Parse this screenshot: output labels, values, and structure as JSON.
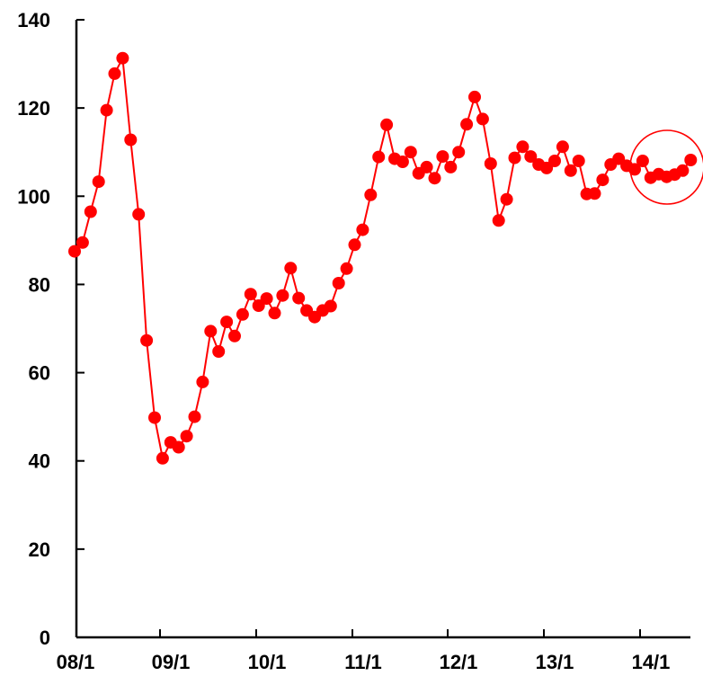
{
  "chart_data": {
    "type": "line",
    "title": "",
    "xlabel": "",
    "ylabel": "",
    "x_ticks": [
      "08/1",
      "09/1",
      "10/1",
      "11/1",
      "12/1",
      "13/1",
      "14/1"
    ],
    "y_ticks": [
      "0",
      "20",
      "40",
      "60",
      "80",
      "100",
      "120",
      "140"
    ],
    "ylim": [
      0,
      140
    ],
    "grid": false,
    "legend": "none",
    "series": [
      {
        "color": "#ff0000",
        "marker": "circle",
        "start": "2008-01",
        "values": [
          87.5,
          89.5,
          96.5,
          103.3,
          119.5,
          127.8,
          131.3,
          112.8,
          95.9,
          67.3,
          49.8,
          40.6,
          44.2,
          43.1,
          45.6,
          50.0,
          57.9,
          69.4,
          64.8,
          71.5,
          68.3,
          73.2,
          77.8,
          75.2,
          76.8,
          73.5,
          77.5,
          83.7,
          76.9,
          74.1,
          72.6,
          74.1,
          75.1,
          80.3,
          83.6,
          89.0,
          92.4,
          100.3,
          108.9,
          116.2,
          108.5,
          107.8,
          110.0,
          105.2,
          106.6,
          104.1,
          109.0,
          106.6,
          110.0,
          116.3,
          122.5,
          117.5,
          107.4,
          94.5,
          99.3,
          108.7,
          111.2,
          109.0,
          107.2,
          106.4,
          108.0,
          111.2,
          105.8,
          108.0,
          100.5,
          100.6,
          103.7,
          107.2,
          108.5,
          106.9,
          106.1,
          108.0,
          104.2,
          105.0,
          104.4,
          104.9,
          105.8,
          108.2
        ]
      }
    ],
    "annotations": [
      {
        "type": "circle",
        "color": "#ff0000",
        "around": "2014-02",
        "note": ""
      }
    ]
  }
}
